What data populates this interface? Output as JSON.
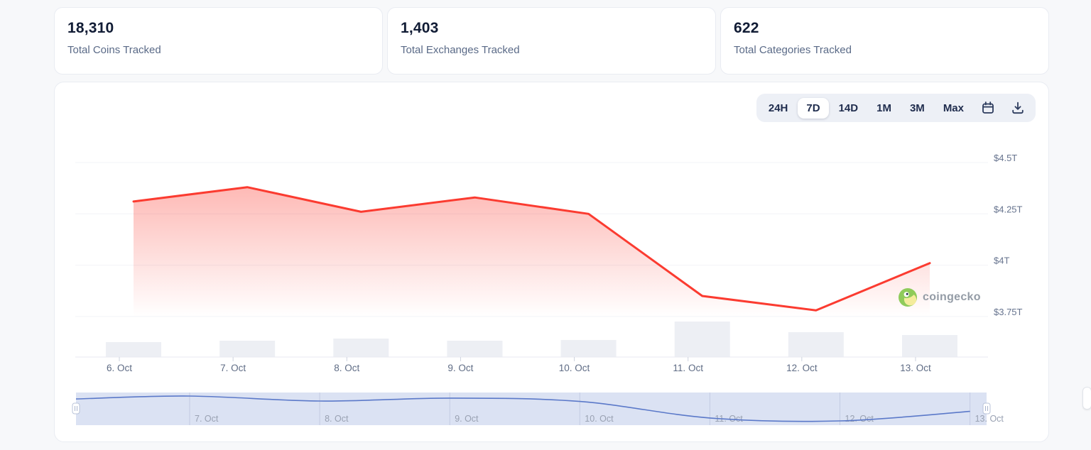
{
  "page": {
    "background": "#f7f8fa"
  },
  "stats": [
    {
      "value": "18,310",
      "label": "Total Coins Tracked"
    },
    {
      "value": "1,403",
      "label": "Total Exchanges Tracked"
    },
    {
      "value": "622",
      "label": "Total Categories Tracked"
    }
  ],
  "toolbar": {
    "ranges": [
      {
        "label": "24H",
        "active": false
      },
      {
        "label": "7D",
        "active": true
      },
      {
        "label": "14D",
        "active": false
      },
      {
        "label": "1M",
        "active": false
      },
      {
        "label": "3M",
        "active": false
      },
      {
        "label": "Max",
        "active": false
      }
    ],
    "icons": [
      "calendar",
      "download"
    ]
  },
  "chart_data": {
    "type": "area",
    "title": "",
    "categories": [
      "6. Oct",
      "7. Oct",
      "8. Oct",
      "9. Oct",
      "10. Oct",
      "11. Oct",
      "12. Oct",
      "13. Oct"
    ],
    "series": [
      {
        "name": "market-cap",
        "unit": "trillion-usd",
        "values": [
          4.31,
          4.38,
          4.26,
          4.33,
          4.25,
          3.85,
          3.78,
          4.01
        ]
      },
      {
        "name": "volume",
        "unit": "relative",
        "values": [
          0.42,
          0.46,
          0.52,
          0.46,
          0.48,
          1.0,
          0.7,
          0.62
        ]
      }
    ],
    "y_ticks": [
      {
        "label": "$4.5T",
        "value": 4.5
      },
      {
        "label": "$4.25T",
        "value": 4.25
      },
      {
        "label": "$4T",
        "value": 4.0
      },
      {
        "label": "$3.75T",
        "value": 3.75
      }
    ],
    "ylim": [
      3.72,
      4.5
    ],
    "grid": "horizontal",
    "legend": "none",
    "colors": {
      "line": "#fb3b30",
      "area_top": "rgba(251,59,48,0.36)",
      "area_bottom": "rgba(251,59,48,0)",
      "bars": "#edeff4",
      "gridline": "#f2f3f7",
      "axis": "#e8eaf0",
      "tick": "#ced3df",
      "x_label": "#5f6c85",
      "y_label": "#66738e"
    }
  },
  "navigator": {
    "labels": [
      "7. Oct",
      "8. Oct",
      "9. Oct",
      "10. Oct",
      "11. Oct",
      "12. Oct",
      "13. Oct"
    ],
    "values": [
      4.31,
      4.38,
      4.26,
      4.33,
      4.25,
      3.85,
      3.78,
      4.01
    ],
    "colors": {
      "band": "#dbe2f3",
      "gridline": "#c3cbe2",
      "line": "#5b79c9",
      "label": "#99a1b2",
      "handle_border": "#b9c3d9"
    }
  },
  "watermark": {
    "text": "coingecko"
  }
}
